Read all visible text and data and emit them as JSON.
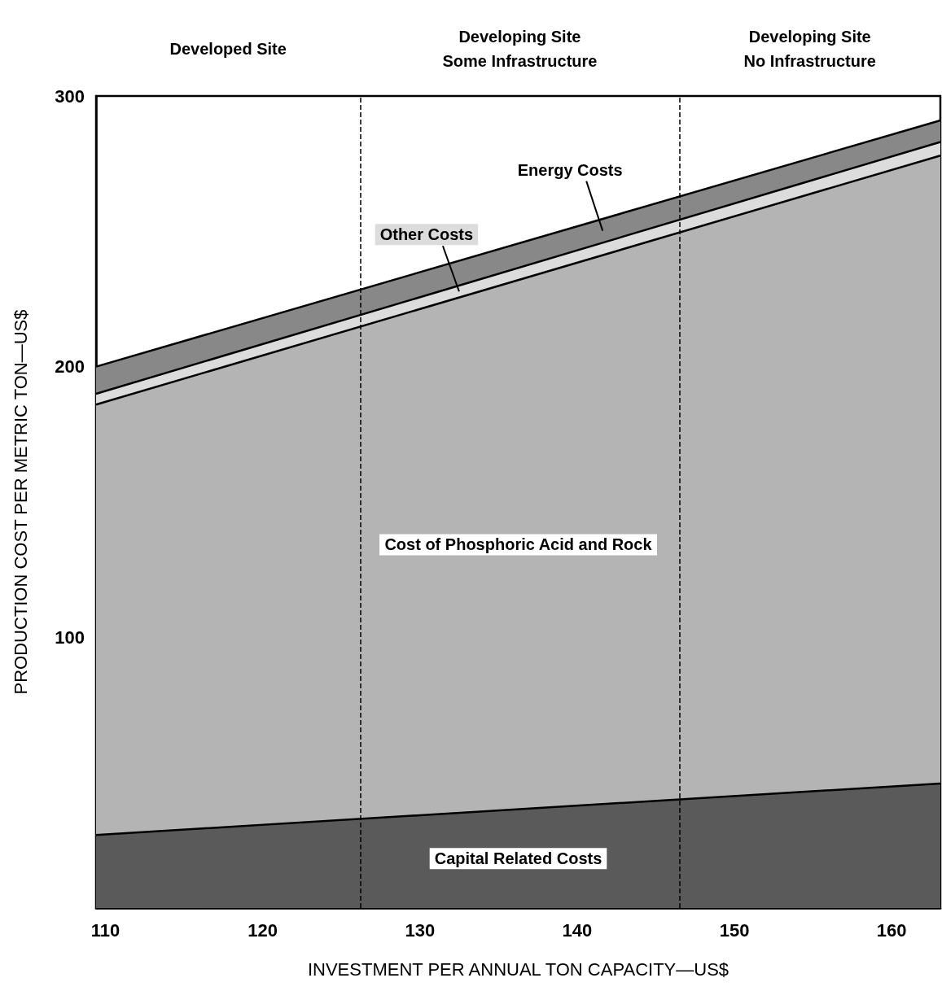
{
  "chart_data": {
    "type": "area",
    "stacked": true,
    "xlabel": "INVESTMENT PER ANNUAL TON CAPACITY—US$",
    "ylabel": "PRODUCTION COST PER METRIC TON—US$",
    "x": [
      109.4,
      163.1
    ],
    "series": [
      {
        "name": "Capital Related Costs",
        "color": "#5a5a5a",
        "values": [
          27,
          46
        ]
      },
      {
        "name": "Cost of Phosphoric Acid and Rock",
        "color": "#b4b4b4",
        "values": [
          159,
          232
        ]
      },
      {
        "name": "Other Costs",
        "color": "#dcdcdc",
        "values": [
          4,
          5
        ]
      },
      {
        "name": "Energy Costs",
        "color": "#888888",
        "values": [
          10,
          8
        ]
      }
    ],
    "xlim": [
      109.4,
      163.1
    ],
    "xticks": [
      110,
      120,
      130,
      140,
      150,
      160
    ],
    "ylim": [
      0,
      300
    ],
    "yticks": [
      100,
      200,
      300
    ],
    "ref_lines": [
      {
        "axis": "x",
        "value": 126.2,
        "line_style": "dashed"
      },
      {
        "axis": "x",
        "value": 146.5,
        "line_style": "dashed"
      }
    ],
    "annotations": [
      "Developed Site",
      "Developing Site\nSome Infrastructure",
      "Developing Site\nNo Infrastructure"
    ],
    "grid": false,
    "legend": false
  }
}
